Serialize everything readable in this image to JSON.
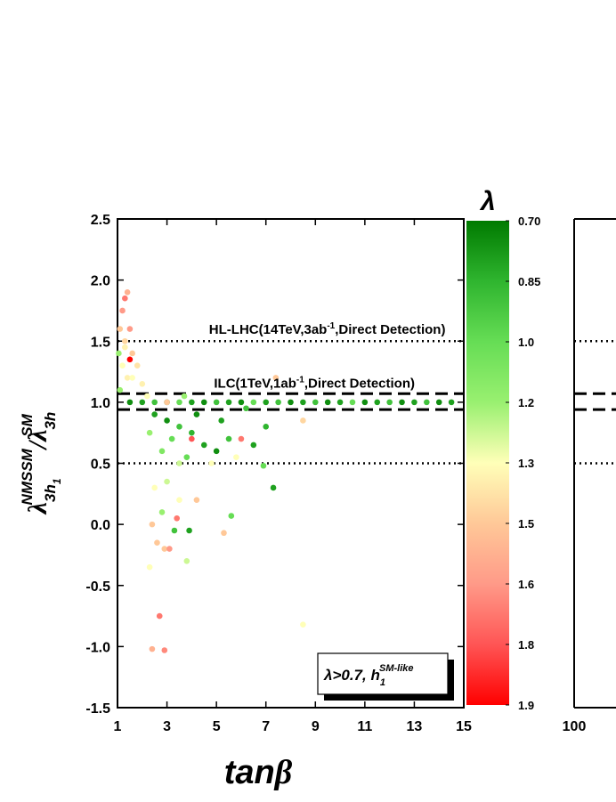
{
  "chart_data": [
    {
      "type": "scatter",
      "xlabel": "tan",
      "xlabel_greek": "β",
      "ylabel_parts": [
        "λ",
        "3h",
        "1",
        "NMSSM",
        "/λ",
        "3h",
        "SM"
      ],
      "xlim": [
        1,
        15
      ],
      "xticks": [
        1,
        3,
        5,
        7,
        9,
        11,
        13,
        15
      ],
      "ylim": [
        -1.5,
        2.5
      ],
      "yticks": [
        -1.5,
        {
          "value": -1,
          "label": "-1.0"
        },
        -0.5,
        {
          "value": 0,
          "label": "0.0"
        },
        0.5,
        {
          "value": 1,
          "label": "1.0"
        },
        1.5,
        {
          "value": 2,
          "label": "2.0"
        },
        2.5
      ],
      "hlines": [
        {
          "value": 1.5,
          "style": "dotted"
        },
        {
          "value": 1.07,
          "style": "dashed"
        },
        {
          "value": 0.94,
          "style": "dashed"
        },
        {
          "value": 0.5,
          "style": "dotted"
        }
      ],
      "annotations": [
        {
          "parts": [
            "HL-LHC(14TeV,3ab",
            "-1",
            ",Direct Detection)"
          ],
          "x": 4.7,
          "y": 1.56
        },
        {
          "parts": [
            "ILC(1TeV,1ab",
            "-1",
            ",Direct Detection)"
          ],
          "x": 4.9,
          "y": 1.12
        }
      ],
      "legend_parts": [
        "λ>0.7, h",
        "1",
        "SM-like"
      ],
      "colorbar": {
        "title": "λ",
        "ticks": [
          {
            "value": 0.7,
            "label": "0.70"
          },
          0.85,
          {
            "value": 1,
            "label": "1.0"
          },
          1.2,
          1.3,
          1.5,
          1.6,
          1.8,
          1.9
        ],
        "colors": [
          "#007a00",
          "#2fb52f",
          "#66dd55",
          "#99f070",
          "#ffffb8",
          "#ffc898",
          "#ff9a88",
          "#ff5555",
          "#ff0000"
        ]
      },
      "x": [
        1.5,
        2,
        2.5,
        3,
        3.5,
        4,
        4.5,
        5,
        5.5,
        6,
        6.5,
        7,
        7.5,
        8,
        8.5,
        9,
        9.5,
        10,
        10.5,
        11,
        11.5,
        12,
        12.5,
        13,
        13.5,
        14,
        14.5,
        1.1,
        1.2,
        1.3,
        1.4,
        1.5,
        1.3,
        1.6,
        1.2,
        1.4,
        1.8,
        1.6,
        2.0,
        1.1,
        1.5,
        2.2,
        1.3,
        1.05,
        2.5,
        3,
        3.5,
        4,
        3.2,
        4.5,
        5,
        5.5,
        6,
        6.5,
        7,
        2.8,
        3.8,
        4.2,
        5.2,
        6.2,
        2.3,
        3.5,
        4.8,
        7.3,
        6.9,
        7.4,
        8.5,
        5.8,
        3.0,
        4.0,
        3.7,
        2.5,
        3,
        3.5,
        2.4,
        2.8,
        3.3,
        2.6,
        2.9,
        3.1,
        3.9,
        2.3,
        3.8,
        2.7,
        2.4,
        2.9,
        5.3,
        5.6,
        8.5,
        4.2,
        3.4
      ],
      "values": [
        1,
        1,
        1,
        1,
        1,
        1,
        1,
        1,
        1,
        1,
        1,
        1,
        1,
        1,
        1,
        1,
        1,
        1,
        1,
        1,
        1,
        1,
        1,
        1,
        1,
        1,
        1,
        1.6,
        1.75,
        1.85,
        1.9,
        1.6,
        1.5,
        1.4,
        1.3,
        1.2,
        1.3,
        1.2,
        1.15,
        1.1,
        1.35,
        1.05,
        1.45,
        1.4,
        0.9,
        0.85,
        0.8,
        0.75,
        0.7,
        0.65,
        0.6,
        0.7,
        0.7,
        0.65,
        0.8,
        0.6,
        0.55,
        0.9,
        0.85,
        0.95,
        0.75,
        0.5,
        0.5,
        0.3,
        0.48,
        1.2,
        0.85,
        0.55,
        1.0,
        0.7,
        1.05,
        0.3,
        0.35,
        0.2,
        0.0,
        0.1,
        -0.05,
        -0.15,
        -0.2,
        -0.2,
        -0.05,
        -0.35,
        -0.3,
        -0.75,
        -1.02,
        -1.03,
        -0.07,
        0.07,
        -0.82,
        0.2,
        0.05
      ],
      "c": [
        0.75,
        0.8,
        0.9,
        0.75,
        1.0,
        0.8,
        0.75,
        0.9,
        0.8,
        0.75,
        1.0,
        0.8,
        0.9,
        0.75,
        0.8,
        0.9,
        0.75,
        0.8,
        1.0,
        0.75,
        0.8,
        0.9,
        0.75,
        0.8,
        0.9,
        0.75,
        0.8,
        1.5,
        1.6,
        1.7,
        1.55,
        1.6,
        1.45,
        1.5,
        1.3,
        1.35,
        1.4,
        1.3,
        1.35,
        1.2,
        1.9,
        1.3,
        1.35,
        1.2,
        0.8,
        0.75,
        0.9,
        0.85,
        1.0,
        0.8,
        0.75,
        0.9,
        1.7,
        0.8,
        0.85,
        1.1,
        1.0,
        0.75,
        0.8,
        0.9,
        1.2,
        1.25,
        1.3,
        0.8,
        1.0,
        1.5,
        1.45,
        1.3,
        1.5,
        1.8,
        1.2,
        1.3,
        1.25,
        1.3,
        1.5,
        1.2,
        0.9,
        1.5,
        1.5,
        1.6,
        0.8,
        1.3,
        1.25,
        1.7,
        1.55,
        1.65,
        1.5,
        1.0,
        1.3,
        1.5,
        1.7
      ]
    },
    {
      "type": "scatter",
      "xticks": [
        100
      ],
      "ylim": [
        -1.5,
        2.5
      ],
      "hlines": [
        {
          "value": 1.5,
          "style": "dotted"
        },
        {
          "value": 1.07,
          "style": "dashed"
        },
        {
          "value": 0.94,
          "style": "dashed"
        },
        {
          "value": 0.5,
          "style": "dotted"
        }
      ]
    }
  ]
}
